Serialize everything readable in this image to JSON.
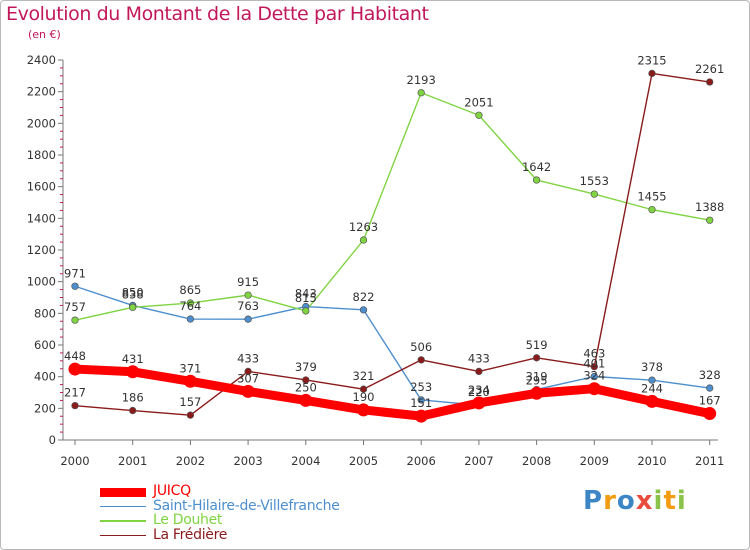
{
  "header": {
    "title": "Evolution du Montant de la Dette par Habitant",
    "unit": "(en €)"
  },
  "brand": {
    "letters": [
      "P",
      "r",
      "o",
      "x",
      "i",
      "t",
      "i"
    ],
    "colors": [
      "#3d86c6",
      "#f39c12",
      "#3d86c6",
      "#e74c3c",
      "#8bc34a",
      "#f39c12",
      "#8bc34a"
    ]
  },
  "chart_data": {
    "type": "line",
    "categories": [
      "2000",
      "2001",
      "2002",
      "2003",
      "2004",
      "2005",
      "2006",
      "2007",
      "2008",
      "2009",
      "2010",
      "2011"
    ],
    "ylim": [
      0,
      2400
    ],
    "yticks": [
      0,
      200,
      400,
      600,
      800,
      1000,
      1200,
      1400,
      1600,
      1800,
      2000,
      2200,
      2400
    ],
    "grid": false,
    "legend_position": "bottom-left",
    "series": [
      {
        "name": "JUICQ",
        "color": "#ff0000",
        "values": [
          448,
          431,
          371,
          307,
          250,
          190,
          151,
          234,
          295,
          324,
          244,
          167
        ]
      },
      {
        "name": "Saint-Hilaire-de-Villefranche",
        "color": "#4d8fce",
        "values": [
          971,
          850,
          764,
          763,
          843,
          822,
          253,
          220,
          319,
          401,
          378,
          328
        ]
      },
      {
        "name": "Le Douhet",
        "color": "#80d442",
        "values": [
          757,
          838,
          865,
          915,
          815,
          1263,
          2193,
          2051,
          1642,
          1553,
          1455,
          1388
        ]
      },
      {
        "name": "La Frédière",
        "color": "#8b1a1a",
        "values": [
          217,
          186,
          157,
          433,
          379,
          321,
          506,
          433,
          519,
          463,
          2315,
          2261
        ]
      }
    ]
  }
}
